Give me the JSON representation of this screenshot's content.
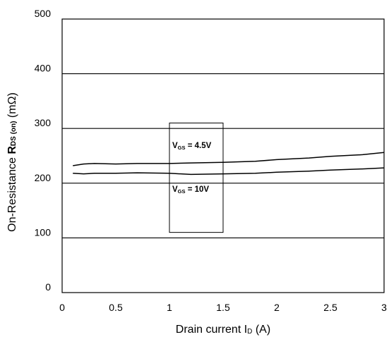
{
  "chart_data": {
    "type": "line",
    "xlabel": {
      "main": "Drain current I",
      "sub": "D",
      "unit": " (A)"
    },
    "ylabel": {
      "prefix": "On-Resistance  ",
      "symbol": "R",
      "sub": "DS (on)",
      "unit": " (mΩ)"
    },
    "xlim": [
      0,
      3
    ],
    "ylim": [
      0,
      500
    ],
    "x_ticks": [
      0,
      0.5,
      1,
      1.5,
      2,
      2.5,
      3
    ],
    "x_tick_labels": [
      "0",
      "0.5",
      "1",
      "1.5",
      "2",
      "2.5",
      "3"
    ],
    "y_ticks": [
      0,
      100,
      200,
      300,
      400,
      500
    ],
    "y_tick_labels": [
      "0",
      "100",
      "200",
      "300",
      "400",
      "500"
    ],
    "grid": {
      "horizontal": true,
      "vertical": false
    },
    "series": [
      {
        "label_main": "V",
        "label_sub": "GS",
        "label_value": " = 4.5V",
        "x": [
          0.1,
          0.2,
          0.3,
          0.5,
          0.7,
          1.0,
          1.2,
          1.5,
          1.8,
          2.0,
          2.3,
          2.5,
          2.8,
          3.0
        ],
        "y": [
          232,
          235,
          236,
          235,
          236,
          236,
          237,
          238,
          240,
          243,
          246,
          249,
          252,
          256
        ]
      },
      {
        "label_main": "V",
        "label_sub": "GS",
        "label_value": " = 10V",
        "x": [
          0.1,
          0.2,
          0.3,
          0.5,
          0.7,
          1.0,
          1.2,
          1.5,
          1.8,
          2.0,
          2.3,
          2.5,
          2.8,
          3.0
        ],
        "y": [
          218,
          217,
          218,
          218,
          219,
          218,
          216,
          217,
          218,
          220,
          222,
          224,
          226,
          228
        ]
      }
    ],
    "annotation_box": {
      "x_range": [
        1.0,
        1.5
      ],
      "y_range": [
        110,
        310
      ]
    }
  }
}
